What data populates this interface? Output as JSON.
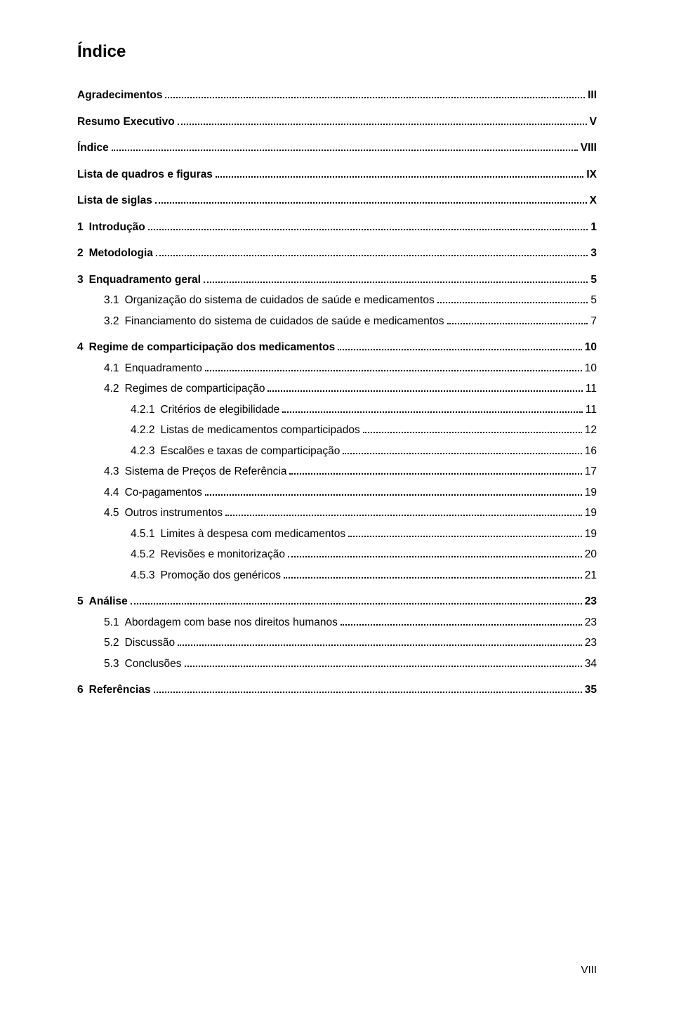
{
  "title": "Índice",
  "footer_page": "VIII",
  "entries": [
    {
      "num": "",
      "label": "Agradecimentos",
      "page": "III",
      "bold": true,
      "indent": 0,
      "section": true
    },
    {
      "num": "",
      "label": "Resumo Executivo",
      "page": "V",
      "bold": true,
      "indent": 0,
      "section": true
    },
    {
      "num": "",
      "label": "Índice",
      "page": "VIII",
      "bold": true,
      "indent": 0,
      "section": true
    },
    {
      "num": "",
      "label": "Lista de quadros e figuras",
      "page": "IX",
      "bold": true,
      "indent": 0,
      "section": true
    },
    {
      "num": "",
      "label": "Lista de siglas",
      "page": "X",
      "bold": true,
      "indent": 0,
      "section": true
    },
    {
      "num": "1",
      "label": "Introdução",
      "page": "1",
      "bold": true,
      "indent": 0,
      "section": true
    },
    {
      "num": "2",
      "label": "Metodologia",
      "page": "3",
      "bold": true,
      "indent": 0,
      "section": true
    },
    {
      "num": "3",
      "label": "Enquadramento geral",
      "page": "5",
      "bold": true,
      "indent": 0,
      "section": true
    },
    {
      "num": "3.1",
      "label": "Organização do sistema de cuidados de saúde e medicamentos",
      "page": "5",
      "bold": false,
      "indent": 1,
      "section": false
    },
    {
      "num": "3.2",
      "label": "Financiamento do sistema de cuidados de saúde e medicamentos",
      "page": "7",
      "bold": false,
      "indent": 1,
      "section": false
    },
    {
      "num": "4",
      "label": "Regime de comparticipação dos medicamentos",
      "page": "10",
      "bold": true,
      "indent": 0,
      "section": true
    },
    {
      "num": "4.1",
      "label": "Enquadramento",
      "page": "10",
      "bold": false,
      "indent": 1,
      "section": false
    },
    {
      "num": "4.2",
      "label": "Regimes de comparticipação",
      "page": "11",
      "bold": false,
      "indent": 1,
      "section": false
    },
    {
      "num": "4.2.1",
      "label": "Critérios de elegibilidade",
      "page": "11",
      "bold": false,
      "indent": 2,
      "section": false
    },
    {
      "num": "4.2.2",
      "label": "Listas de medicamentos comparticipados",
      "page": "12",
      "bold": false,
      "indent": 2,
      "section": false
    },
    {
      "num": "4.2.3",
      "label": "Escalões e taxas de comparticipação",
      "page": "16",
      "bold": false,
      "indent": 2,
      "section": false
    },
    {
      "num": "4.3",
      "label": "Sistema de Preços de Referência",
      "page": "17",
      "bold": false,
      "indent": 1,
      "section": false
    },
    {
      "num": "4.4",
      "label": "Co-pagamentos",
      "page": "19",
      "bold": false,
      "indent": 1,
      "section": false
    },
    {
      "num": "4.5",
      "label": "Outros instrumentos",
      "page": "19",
      "bold": false,
      "indent": 1,
      "section": false
    },
    {
      "num": "4.5.1",
      "label": "Limites à despesa com medicamentos",
      "page": "19",
      "bold": false,
      "indent": 2,
      "section": false
    },
    {
      "num": "4.5.2",
      "label": "Revisões e monitorização",
      "page": "20",
      "bold": false,
      "indent": 2,
      "section": false
    },
    {
      "num": "4.5.3",
      "label": "Promoção dos genéricos",
      "page": "21",
      "bold": false,
      "indent": 2,
      "section": false
    },
    {
      "num": "5",
      "label": "Análise",
      "page": "23",
      "bold": true,
      "indent": 0,
      "section": true
    },
    {
      "num": "5.1",
      "label": "Abordagem com base nos direitos humanos",
      "page": "23",
      "bold": false,
      "indent": 1,
      "section": false
    },
    {
      "num": "5.2",
      "label": "Discussão",
      "page": "23",
      "bold": false,
      "indent": 1,
      "section": false
    },
    {
      "num": "5.3",
      "label": "Conclusões",
      "page": "34",
      "bold": false,
      "indent": 1,
      "section": false
    },
    {
      "num": "6",
      "label": "Referências",
      "page": "35",
      "bold": true,
      "indent": 0,
      "section": true
    }
  ]
}
